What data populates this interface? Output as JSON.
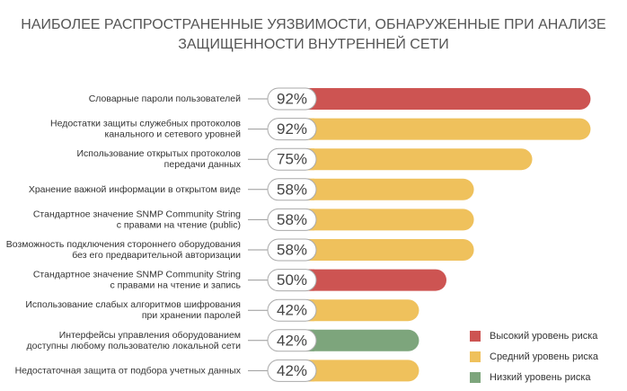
{
  "chart_data": {
    "type": "bar",
    "orientation": "horizontal",
    "title": [
      "НАИБОЛЕЕ РАСПРОСТРАНЕННЫЕ УЯЗВИМОСТИ, ОБНАРУЖЕННЫЕ ПРИ АНАЛИЗЕ",
      "ЗАЩИЩЕННОСТИ ВНУТРЕННЕЙ СЕТИ"
    ],
    "categories": [
      [
        "Словарные пароли пользователей"
      ],
      [
        "Недостатки защиты служебных протоколов",
        "канального и сетевого уровней"
      ],
      [
        "Использование открытых протоколов",
        "передачи данных"
      ],
      [
        "Хранение важной информации в открытом виде"
      ],
      [
        "Стандартное значение SNMP Community String",
        "с правами на чтение (public)"
      ],
      [
        "Возможность подключения стороннего оборудования",
        "без его предварительной авторизации"
      ],
      [
        "Стандартное значение SNMP Community String",
        "с правами на чтение и запись"
      ],
      [
        "Использование слабых алгоритмов шифрования",
        "при хранении паролей"
      ],
      [
        "Интерфейсы управления оборудованием",
        "доступны любому пользователю локальной сети"
      ],
      [
        "Недостаточная защита от подбора учетных данных"
      ]
    ],
    "values": [
      92,
      92,
      75,
      58,
      58,
      58,
      50,
      42,
      42,
      42
    ],
    "value_labels": [
      "92%",
      "92%",
      "75%",
      "58%",
      "58%",
      "58%",
      "50%",
      "42%",
      "42%",
      "42%"
    ],
    "colors": [
      "#cd5452",
      "#efc15c",
      "#efc15c",
      "#efc15c",
      "#efc15c",
      "#efc15c",
      "#cd5452",
      "#efc15c",
      "#7da57c",
      "#efc15c"
    ],
    "legend": [
      {
        "name": "Высокий уровень риска",
        "color": "#cd5452"
      },
      {
        "name": "Средний уровень риска",
        "color": "#efc15c"
      },
      {
        "name": "Низкий уровень риска",
        "color": "#7da57c"
      }
    ]
  }
}
